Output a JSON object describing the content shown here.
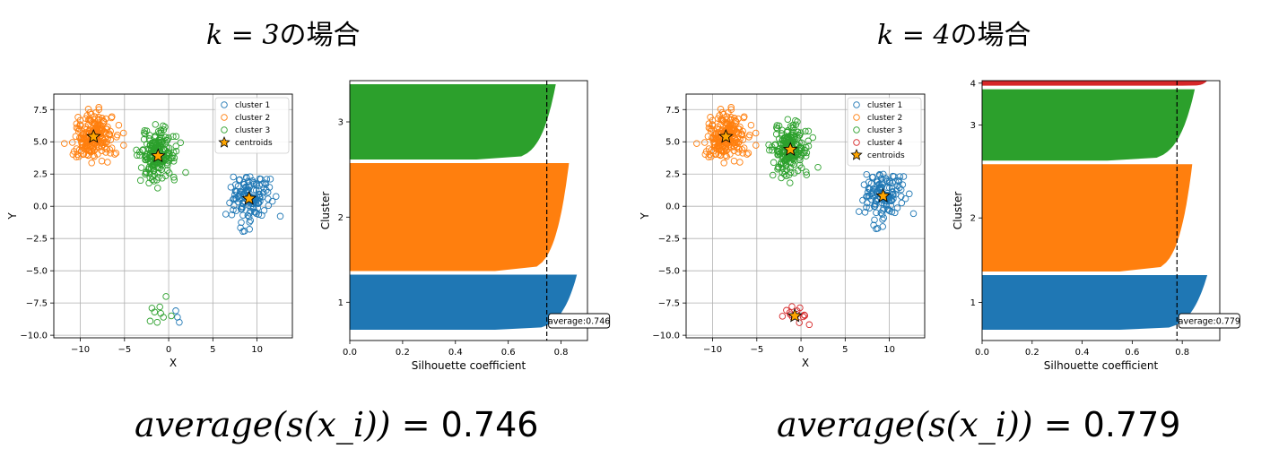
{
  "colors": {
    "cluster1": "#1f77b4",
    "cluster2": "#ff7f0e",
    "cluster3": "#2ca02c",
    "cluster4": "#d62728",
    "centroid": "#ffa500"
  },
  "left": {
    "heading": {
      "k_expr": "k = 3",
      "suffix": "の場合"
    },
    "formula": {
      "expr": "average(s(x_i)) =",
      "value": "0.746"
    }
  },
  "right": {
    "heading": {
      "k_expr": "k = 4",
      "suffix": "の場合"
    },
    "formula": {
      "expr": "average(s(x_i)) =",
      "value": "0.779"
    }
  },
  "chart_data": [
    {
      "type": "scatter",
      "xlabel": "X",
      "ylabel": "Y",
      "xlim": [
        -13,
        14
      ],
      "ylim": [
        -10.2,
        8.7
      ],
      "xticks": [
        -10,
        -5,
        0,
        5,
        10
      ],
      "yticks": [
        -10.0,
        -7.5,
        -5.0,
        -2.5,
        0.0,
        2.5,
        5.0,
        7.5
      ],
      "xtick_labels": [
        "−10",
        "−5",
        "0",
        "5",
        "10"
      ],
      "ytick_labels": [
        "−10.0",
        "−7.5",
        "−5.0",
        "−2.5",
        "0.0",
        "2.5",
        "5.0",
        "7.5"
      ],
      "grid": true,
      "legend": "top-right",
      "series": [
        {
          "name": "cluster 1",
          "color_key": "cluster1",
          "center": [
            9.2,
            0.6
          ],
          "spread": [
            1.1,
            0.9
          ],
          "count": 140,
          "extra": [
            [
              0.8,
              -8.1
            ],
            [
              1.2,
              -9.0
            ],
            [
              1.0,
              -8.6
            ]
          ]
        },
        {
          "name": "cluster 2",
          "color_key": "cluster2",
          "center": [
            -8.5,
            5.4
          ],
          "spread": [
            1.1,
            0.9
          ],
          "count": 220
        },
        {
          "name": "cluster 3",
          "color_key": "cluster3",
          "center": [
            -1.2,
            4.0
          ],
          "spread": [
            1.0,
            1.0
          ],
          "count": 200,
          "extra": [
            [
              -0.3,
              -7.0
            ],
            [
              -1.0,
              -7.8
            ],
            [
              -1.6,
              -8.2
            ],
            [
              -0.6,
              -8.6
            ],
            [
              -1.3,
              -9.0
            ],
            [
              -2.1,
              -8.9
            ],
            [
              -1.9,
              -7.9
            ],
            [
              0.3,
              -8.5
            ],
            [
              -0.9,
              -8.3
            ]
          ]
        }
      ],
      "centroids": {
        "name": "centroids",
        "points": [
          [
            -8.5,
            5.4
          ],
          [
            -1.2,
            3.9
          ],
          [
            9.1,
            0.6
          ]
        ]
      }
    },
    {
      "type": "bar",
      "orientation": "horizontal",
      "xlabel": "Silhouette coefficient",
      "ylabel": "Cluster",
      "xlim": [
        0,
        0.9
      ],
      "xticks": [
        0.0,
        0.2,
        0.4,
        0.6,
        0.8
      ],
      "xtick_labels": [
        "0.0",
        "0.2",
        "0.4",
        "0.6",
        "0.8"
      ],
      "clusters": [
        {
          "label": "1",
          "color_key": "cluster1",
          "count": 153,
          "max": 0.86,
          "min": 0.55,
          "low": 0.55
        },
        {
          "label": "2",
          "color_key": "cluster2",
          "count": 300,
          "max": 0.83,
          "min": 0.55,
          "low": 0.55
        },
        {
          "label": "3",
          "color_key": "cluster3",
          "count": 209,
          "max": 0.78,
          "min": 0.48,
          "low": 0.48
        }
      ],
      "average": 0.746,
      "average_label": "average:0.746"
    },
    {
      "type": "scatter",
      "xlabel": "X",
      "ylabel": "Y",
      "xlim": [
        -13,
        14
      ],
      "ylim": [
        -10.2,
        8.7
      ],
      "xticks": [
        -10,
        -5,
        0,
        5,
        10
      ],
      "yticks": [
        -10.0,
        -7.5,
        -5.0,
        -2.5,
        0.0,
        2.5,
        5.0,
        7.5
      ],
      "xtick_labels": [
        "−10",
        "−5",
        "0",
        "5",
        "10"
      ],
      "ytick_labels": [
        "−10.0",
        "−7.5",
        "−5.0",
        "−2.5",
        "0.0",
        "2.5",
        "5.0",
        "7.5"
      ],
      "grid": true,
      "legend": "top-right",
      "series": [
        {
          "name": "cluster 1",
          "color_key": "cluster1",
          "center": [
            9.3,
            0.8
          ],
          "spread": [
            1.1,
            0.9
          ],
          "count": 140
        },
        {
          "name": "cluster 2",
          "color_key": "cluster2",
          "center": [
            -8.5,
            5.4
          ],
          "spread": [
            1.1,
            0.9
          ],
          "count": 220
        },
        {
          "name": "cluster 3",
          "color_key": "cluster3",
          "center": [
            -1.2,
            4.4
          ],
          "spread": [
            1.0,
            1.0
          ],
          "count": 200
        },
        {
          "name": "cluster 4",
          "color_key": "cluster4",
          "center": [
            -0.7,
            -8.4
          ],
          "spread": [
            0.8,
            0.5
          ],
          "count": 14
        }
      ],
      "centroids": {
        "name": "centroids",
        "points": [
          [
            -8.5,
            5.4
          ],
          [
            -1.2,
            4.4
          ],
          [
            9.3,
            0.8
          ],
          [
            -0.7,
            -8.5
          ]
        ]
      }
    },
    {
      "type": "bar",
      "orientation": "horizontal",
      "xlabel": "Silhouette coefficient",
      "ylabel": "Cluster",
      "xlim": [
        0,
        0.95
      ],
      "xticks": [
        0.0,
        0.2,
        0.4,
        0.6,
        0.8
      ],
      "xtick_labels": [
        "0.0",
        "0.2",
        "0.4",
        "0.6",
        "0.8"
      ],
      "clusters": [
        {
          "label": "1",
          "color_key": "cluster1",
          "count": 153,
          "max": 0.9,
          "min": 0.55,
          "low": 0.55
        },
        {
          "label": "2",
          "color_key": "cluster2",
          "count": 300,
          "max": 0.84,
          "min": 0.55,
          "low": 0.55
        },
        {
          "label": "3",
          "color_key": "cluster3",
          "count": 200,
          "max": 0.85,
          "min": 0.5,
          "low": 0.5
        },
        {
          "label": "4",
          "color_key": "cluster4",
          "count": 14,
          "max": 0.9,
          "min": 0.8,
          "low": 0.8
        }
      ],
      "average": 0.779,
      "average_label": "average:0.779"
    }
  ]
}
